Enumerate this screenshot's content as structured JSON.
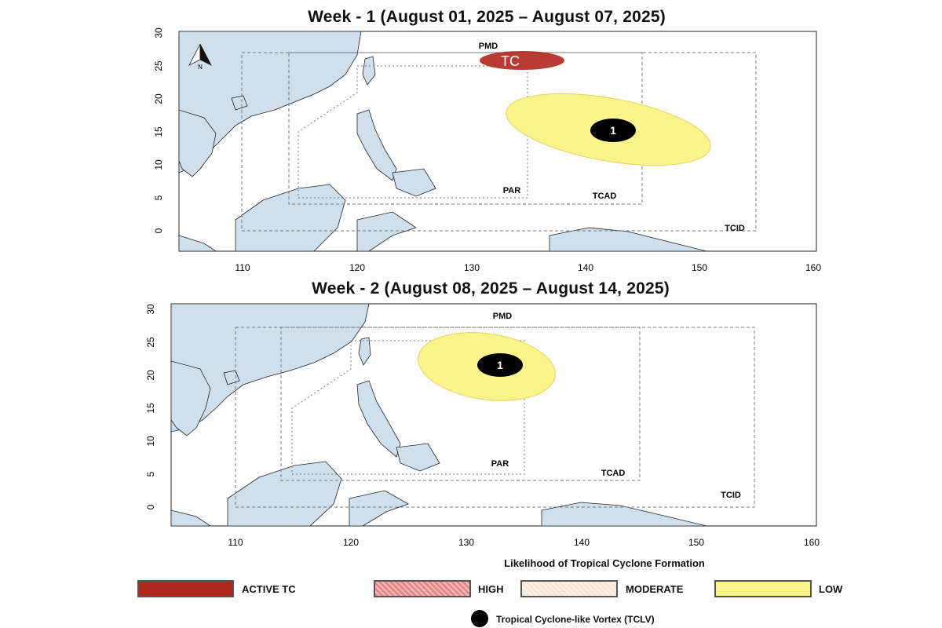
{
  "maps": [
    {
      "title": "Week - 1 (August 01, 2025 – August 07, 2025)",
      "labels": {
        "pmd": "PMD",
        "par": "PAR",
        "tcad": "TCAD",
        "tcid": "TCID",
        "tc": "TC",
        "north": "N"
      },
      "vortex_number": "1"
    },
    {
      "title": "Week - 2 (August 08, 2025 – August 14, 2025)",
      "labels": {
        "pmd": "PMD",
        "par": "PAR",
        "tcad": "TCAD",
        "tcid": "TCID"
      },
      "vortex_number": "1"
    }
  ],
  "axes": {
    "lon_ticks": [
      "110",
      "120",
      "130",
      "140",
      "150",
      "160"
    ],
    "lat_ticks": [
      "0",
      "5",
      "10",
      "15",
      "20",
      "25",
      "30"
    ]
  },
  "legend": {
    "title": "Likelihood of Tropical Cyclone Formation",
    "items": [
      {
        "label": "ACTIVE TC",
        "color": "#b0271d"
      },
      {
        "label": "HIGH",
        "color": "#e98583"
      },
      {
        "label": "MODERATE",
        "color": "#f7e6d8"
      },
      {
        "label": "LOW",
        "color": "#fbf48a"
      }
    ],
    "vortex_label": "Tropical Cyclone-like Vortex (TCLV)"
  },
  "colors": {
    "land": "#cfe0ec",
    "active_tc": "#b0271d",
    "low": "#fbf48a",
    "boundary": "#777777"
  }
}
